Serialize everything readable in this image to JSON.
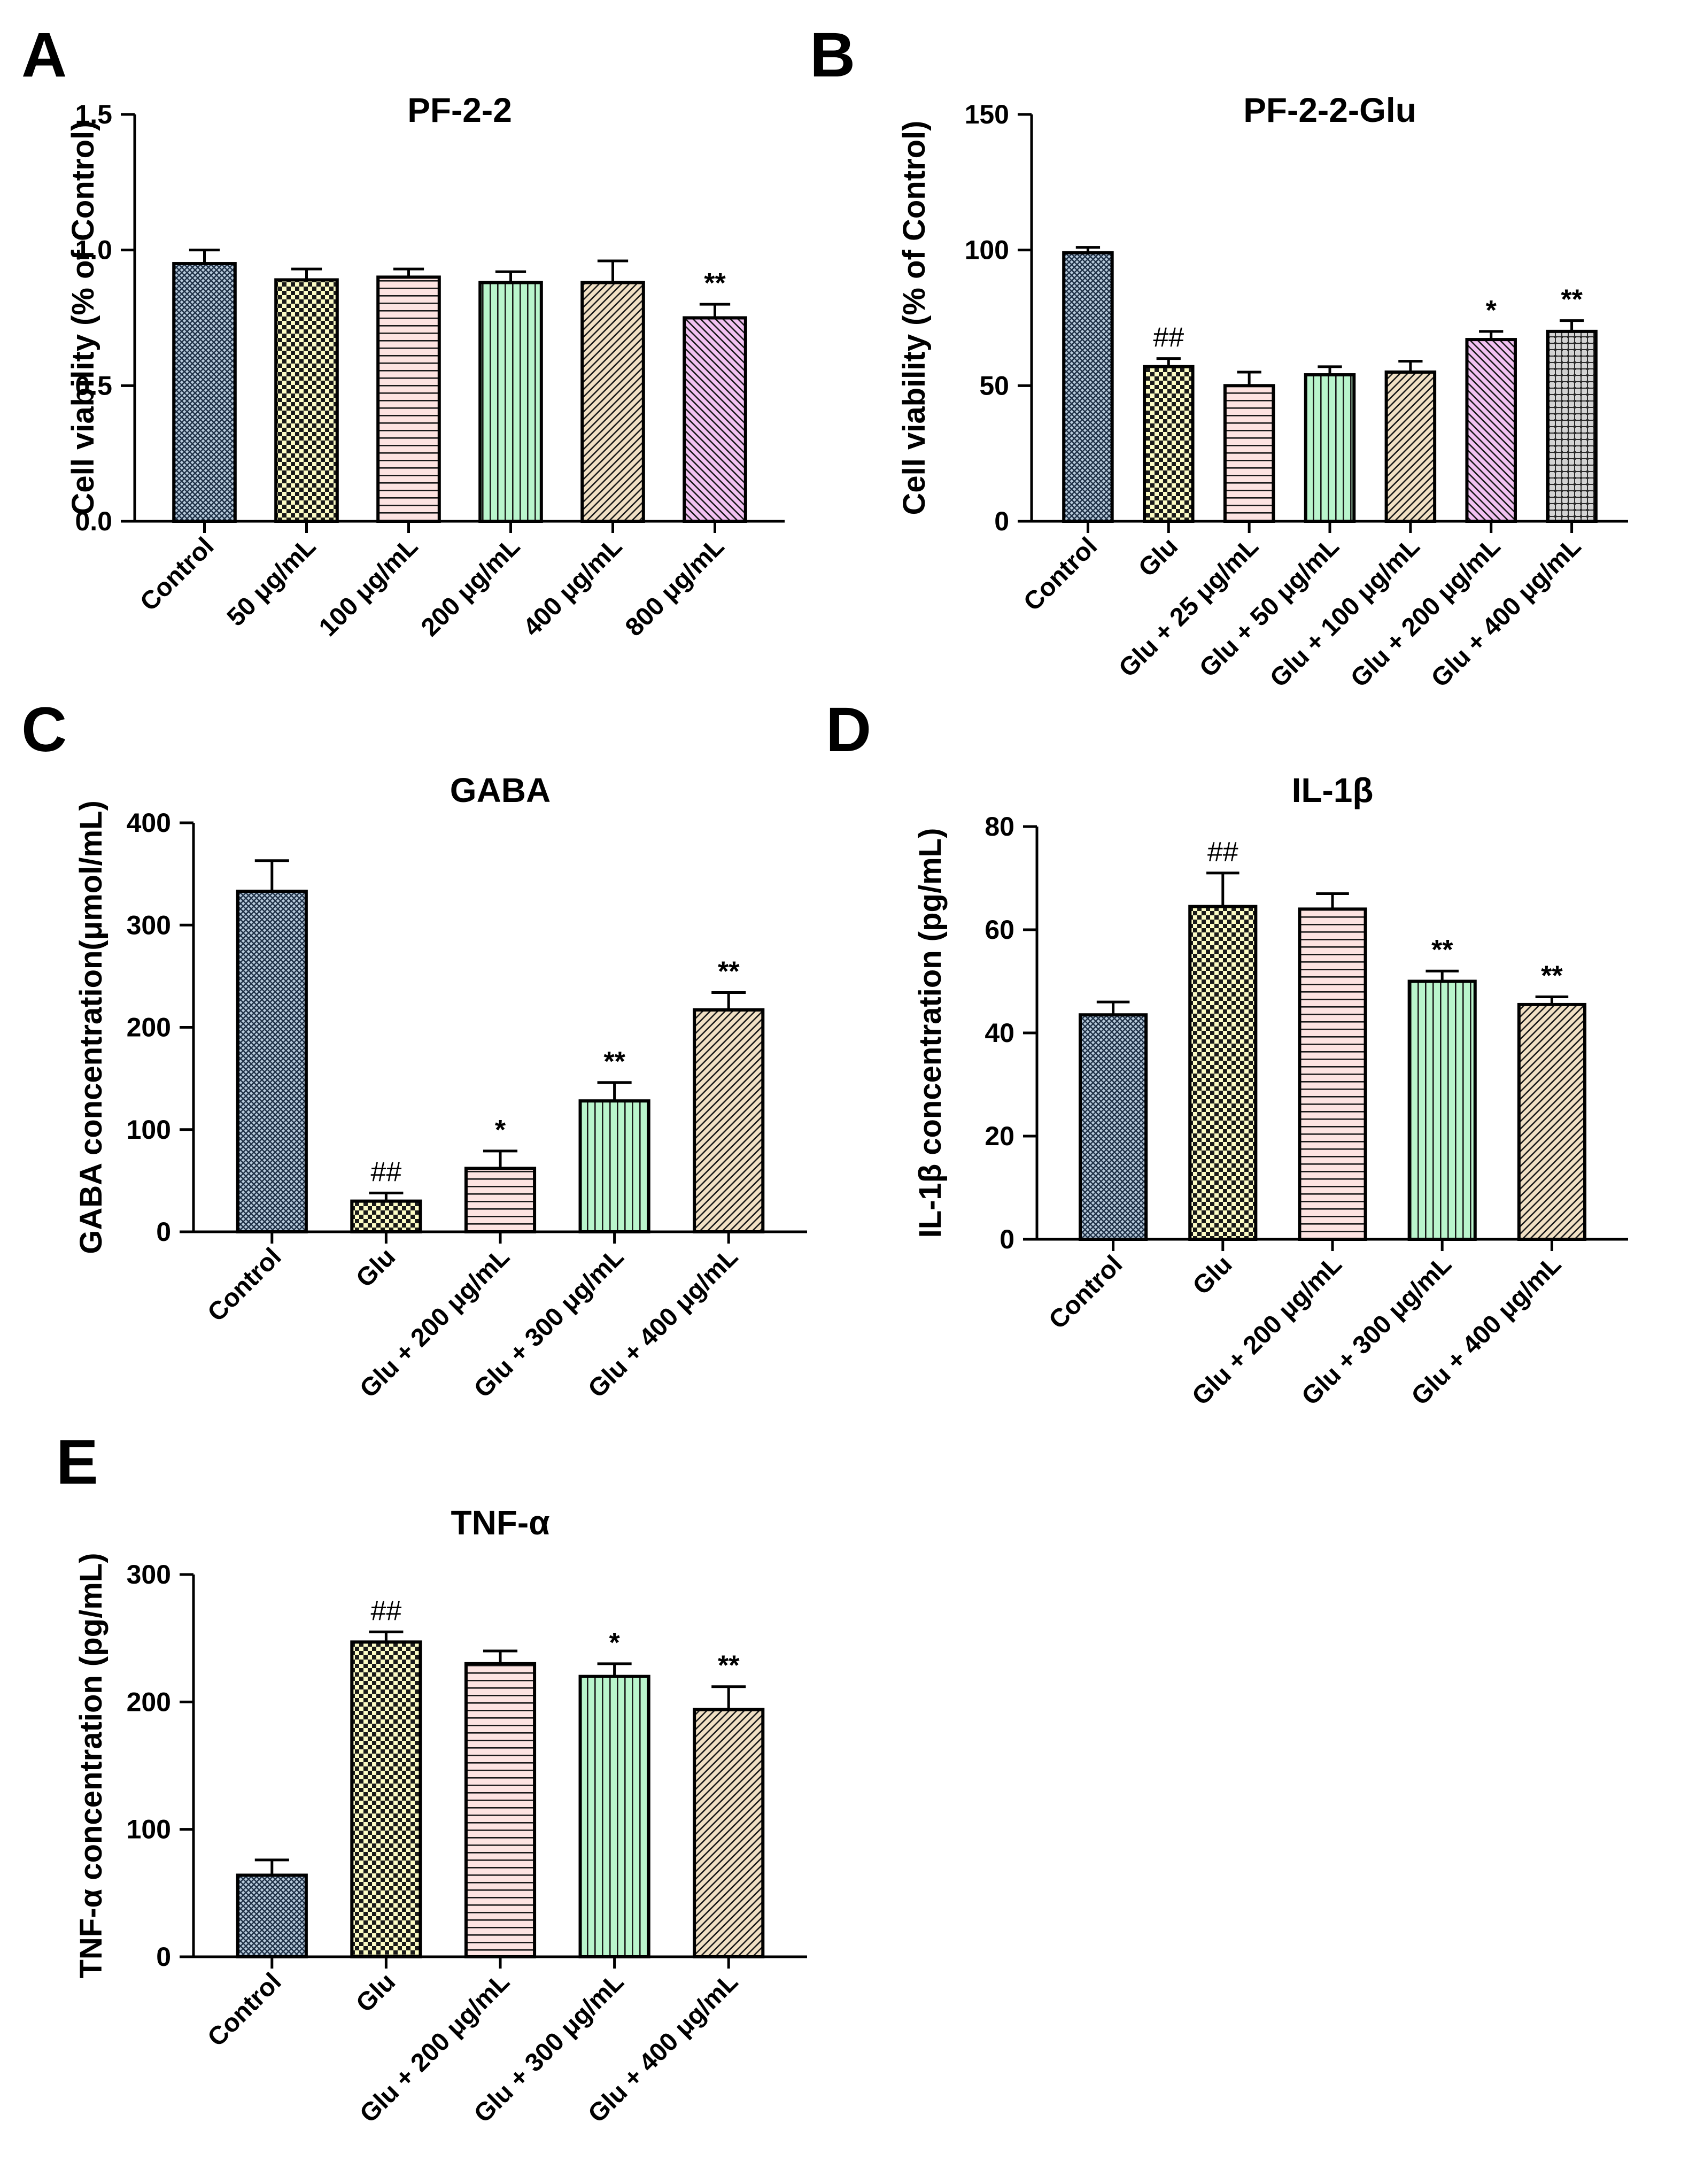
{
  "patterns": {
    "crosshatch": {
      "bg": "#b8cbdc",
      "fg": "#1f3147"
    },
    "checker": {
      "bg": "#fbfbc4",
      "fg": "#1a1a1a"
    },
    "hlines": {
      "bg": "#fde3e1",
      "fg": "#1a1a1a"
    },
    "vlines": {
      "bg": "#b9f5cc",
      "fg": "#1a1a1a"
    },
    "diag_tan": {
      "bg": "#f1e0c4",
      "fg": "#1a1a1a"
    },
    "diag_pink": {
      "bg": "#f2c2f2",
      "fg": "#1a1a1a"
    },
    "dotgrid": {
      "bg": "#d4d4d4",
      "fg": "#2a2a2a"
    }
  },
  "chart_data": [
    {
      "panel": "A",
      "type": "bar",
      "title": "PF-2-2",
      "ylabel": "Cell viability (% of Control)",
      "ylim": [
        0,
        1.5
      ],
      "yticks": [
        0.0,
        0.5,
        1.0,
        1.5
      ],
      "ytick_labels": [
        "0.0",
        "0.5",
        "1.0",
        "1.5"
      ],
      "categories": [
        "Control",
        "50 μg/mL",
        "100 μg/mL",
        "200 μg/mL",
        "400 μg/mL",
        "800 μg/mL"
      ],
      "values": [
        0.95,
        0.89,
        0.9,
        0.88,
        0.88,
        0.75
      ],
      "errors": [
        0.05,
        0.04,
        0.03,
        0.04,
        0.08,
        0.05
      ],
      "significance": [
        "",
        "",
        "",
        "",
        "",
        "**"
      ],
      "patterns": [
        "crosshatch",
        "checker",
        "hlines",
        "vlines",
        "diag_tan",
        "diag_pink"
      ]
    },
    {
      "panel": "B",
      "type": "bar",
      "title": "PF-2-2-Glu",
      "ylabel": "Cell viability (% of Control)",
      "ylim": [
        0,
        150
      ],
      "yticks": [
        0,
        50,
        100,
        150
      ],
      "ytick_labels": [
        "0",
        "50",
        "100",
        "150"
      ],
      "categories": [
        "Control",
        "Glu",
        "Glu + 25 μg/mL",
        "Glu + 50 μg/mL",
        "Glu + 100 μg/mL",
        "Glu + 200 μg/mL",
        "Glu + 400 μg/mL"
      ],
      "values": [
        99,
        57,
        50,
        54,
        55,
        67,
        70
      ],
      "errors": [
        2,
        3,
        5,
        3,
        4,
        3,
        4
      ],
      "significance": [
        "",
        "##",
        "",
        "",
        "",
        "*",
        "**"
      ],
      "patterns": [
        "crosshatch",
        "checker",
        "hlines",
        "vlines",
        "diag_tan",
        "diag_pink",
        "dotgrid"
      ]
    },
    {
      "panel": "C",
      "type": "bar",
      "title": "GABA",
      "ylabel": "GABA concentration(μmol/mL)",
      "ylim": [
        0,
        400
      ],
      "yticks": [
        0,
        100,
        200,
        300,
        400
      ],
      "ytick_labels": [
        "0",
        "100",
        "200",
        "300",
        "400"
      ],
      "categories": [
        "Control",
        "Glu",
        "Glu + 200 μg/mL",
        "Glu + 300 μg/mL",
        "Glu + 400 μg/mL"
      ],
      "values": [
        333,
        30,
        62,
        128,
        217
      ],
      "errors": [
        30,
        8,
        17,
        18,
        17
      ],
      "significance": [
        "",
        "##",
        "*",
        "**",
        "**"
      ],
      "patterns": [
        "crosshatch",
        "checker",
        "hlines",
        "vlines",
        "diag_tan"
      ]
    },
    {
      "panel": "D",
      "type": "bar",
      "title": "IL-1β",
      "ylabel": "IL-1β concentration (pg/mL)",
      "ylim": [
        0,
        80
      ],
      "yticks": [
        0,
        20,
        40,
        60,
        80
      ],
      "ytick_labels": [
        "0",
        "20",
        "40",
        "60",
        "80"
      ],
      "categories": [
        "Control",
        "Glu",
        "Glu + 200 μg/mL",
        "Glu + 300 μg/mL",
        "Glu + 400 μg/mL"
      ],
      "values": [
        43.5,
        64.5,
        64,
        50,
        45.5
      ],
      "errors": [
        2.5,
        6.5,
        3,
        2,
        1.5
      ],
      "significance": [
        "",
        "##",
        "",
        "**",
        "**"
      ],
      "patterns": [
        "crosshatch",
        "checker",
        "hlines",
        "vlines",
        "diag_tan"
      ]
    },
    {
      "panel": "E",
      "type": "bar",
      "title": "TNF-α",
      "ylabel": "TNF-α concentration (pg/mL)",
      "ylim": [
        0,
        300
      ],
      "yticks": [
        0,
        100,
        200,
        300
      ],
      "ytick_labels": [
        "0",
        "100",
        "200",
        "300"
      ],
      "categories": [
        "Control",
        "Glu",
        "Glu + 200 μg/mL",
        "Glu + 300 μg/mL",
        "Glu + 400 μg/mL"
      ],
      "values": [
        64,
        247,
        230,
        220,
        194
      ],
      "errors": [
        12,
        8,
        10,
        10,
        18
      ],
      "significance": [
        "",
        "##",
        "",
        "*",
        "**"
      ],
      "patterns": [
        "crosshatch",
        "checker",
        "hlines",
        "vlines",
        "diag_tan"
      ]
    }
  ]
}
